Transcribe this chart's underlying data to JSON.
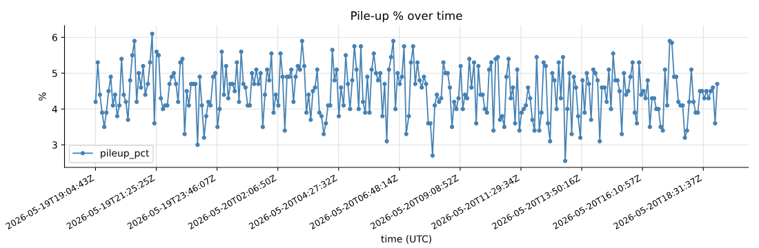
{
  "chart_data": {
    "type": "line",
    "title": "Pile-up % over time",
    "xlabel": "time (UTC)",
    "ylabel": "%",
    "x": [
      "2026-05-19T19:05",
      "2026-05-19T19:10",
      "2026-05-19T19:15",
      "2026-05-19T19:20",
      "2026-05-19T19:25",
      "2026-05-19T19:30",
      "2026-05-19T19:35",
      "2026-05-19T19:40",
      "2026-05-19T19:45",
      "2026-05-19T19:50",
      "2026-05-19T19:55",
      "2026-05-19T20:00",
      "2026-05-19T20:05",
      "2026-05-19T20:10",
      "2026-05-19T20:15",
      "2026-05-19T20:20",
      "2026-05-19T20:25",
      "2026-05-19T20:30",
      "2026-05-19T20:35",
      "2026-05-19T20:40",
      "2026-05-19T20:45",
      "2026-05-19T20:50",
      "2026-05-19T20:55",
      "2026-05-19T21:00",
      "2026-05-19T21:06",
      "2026-05-19T21:11",
      "2026-05-19T21:16",
      "2026-05-19T21:21",
      "2026-05-19T21:26",
      "2026-05-19T21:31",
      "2026-05-19T21:36",
      "2026-05-19T21:41",
      "2026-05-19T21:46",
      "2026-05-19T21:51",
      "2026-05-19T21:56",
      "2026-05-19T22:01",
      "2026-05-19T22:06",
      "2026-05-19T22:11",
      "2026-05-19T22:16",
      "2026-05-19T22:21",
      "2026-05-19T22:26",
      "2026-05-19T22:31",
      "2026-05-19T22:36",
      "2026-05-19T22:41",
      "2026-05-19T22:46",
      "2026-05-19T22:51",
      "2026-05-19T22:56",
      "2026-05-19T23:01",
      "2026-05-19T23:06",
      "2026-05-19T23:11",
      "2026-05-19T23:16",
      "2026-05-19T23:21",
      "2026-05-19T23:26",
      "2026-05-19T23:31",
      "2026-05-19T23:37",
      "2026-05-19T23:42",
      "2026-05-19T23:47",
      "2026-05-19T23:52",
      "2026-05-19T23:57",
      "2026-05-20T00:02",
      "2026-05-20T00:07",
      "2026-05-20T00:12",
      "2026-05-20T00:17",
      "2026-05-20T00:22",
      "2026-05-20T00:27",
      "2026-05-20T00:32",
      "2026-05-20T00:37",
      "2026-05-20T00:42",
      "2026-05-20T00:47",
      "2026-05-20T00:52",
      "2026-05-20T00:57",
      "2026-05-20T01:02",
      "2026-05-20T01:07",
      "2026-05-20T01:12",
      "2026-05-20T01:17",
      "2026-05-20T01:22",
      "2026-05-20T01:27",
      "2026-05-20T01:32",
      "2026-05-20T01:37",
      "2026-05-20T01:42",
      "2026-05-20T01:47",
      "2026-05-20T01:52",
      "2026-05-20T01:57",
      "2026-05-20T02:02",
      "2026-05-20T02:08",
      "2026-05-20T02:13",
      "2026-05-20T02:18",
      "2026-05-20T02:23",
      "2026-05-20T02:28",
      "2026-05-20T02:33",
      "2026-05-20T02:38",
      "2026-05-20T02:43",
      "2026-05-20T02:48",
      "2026-05-20T02:53",
      "2026-05-20T02:58",
      "2026-05-20T03:03",
      "2026-05-20T03:08",
      "2026-05-20T03:13",
      "2026-05-20T03:18",
      "2026-05-20T03:23",
      "2026-05-20T03:28",
      "2026-05-20T03:33",
      "2026-05-20T03:38",
      "2026-05-20T03:43",
      "2026-05-20T03:48",
      "2026-05-20T03:53",
      "2026-05-20T03:58",
      "2026-05-20T04:03",
      "2026-05-20T04:08",
      "2026-05-20T04:13",
      "2026-05-20T04:18",
      "2026-05-20T04:23",
      "2026-05-20T04:28",
      "2026-05-20T04:33",
      "2026-05-20T04:39",
      "2026-05-20T04:44",
      "2026-05-20T04:49",
      "2026-05-20T04:54",
      "2026-05-20T04:59",
      "2026-05-20T05:04",
      "2026-05-20T05:09",
      "2026-05-20T05:14",
      "2026-05-20T05:19",
      "2026-05-20T05:24",
      "2026-05-20T05:29",
      "2026-05-20T05:34",
      "2026-05-20T05:39",
      "2026-05-20T05:44",
      "2026-05-20T05:49",
      "2026-05-20T05:54",
      "2026-05-20T05:59",
      "2026-05-20T06:04",
      "2026-05-20T06:09",
      "2026-05-20T06:14",
      "2026-05-20T06:19",
      "2026-05-20T06:24",
      "2026-05-20T06:29",
      "2026-05-20T06:34",
      "2026-05-20T06:39",
      "2026-05-20T06:44",
      "2026-05-20T06:49",
      "2026-05-20T06:54",
      "2026-05-20T06:59",
      "2026-05-20T07:04",
      "2026-05-20T07:10",
      "2026-05-20T07:15",
      "2026-05-20T07:20",
      "2026-05-20T07:25",
      "2026-05-20T07:30",
      "2026-05-20T07:35",
      "2026-05-20T07:40",
      "2026-05-20T07:45",
      "2026-05-20T07:50",
      "2026-05-20T07:55",
      "2026-05-20T08:00",
      "2026-05-20T08:05",
      "2026-05-20T08:10",
      "2026-05-20T08:15",
      "2026-05-20T08:20",
      "2026-05-20T08:25",
      "2026-05-20T08:30",
      "2026-05-20T08:35",
      "2026-05-20T08:40",
      "2026-05-20T08:45",
      "2026-05-20T08:50",
      "2026-05-20T08:55",
      "2026-05-20T09:00",
      "2026-05-20T09:05",
      "2026-05-20T09:10",
      "2026-05-20T09:15",
      "2026-05-20T09:20",
      "2026-05-20T09:25",
      "2026-05-20T09:30",
      "2026-05-20T09:35",
      "2026-05-20T09:41",
      "2026-05-20T09:46",
      "2026-05-20T09:51",
      "2026-05-20T09:56",
      "2026-05-20T10:01",
      "2026-05-20T10:06",
      "2026-05-20T10:11",
      "2026-05-20T10:16",
      "2026-05-20T10:21",
      "2026-05-20T10:26",
      "2026-05-20T10:31",
      "2026-05-20T10:36",
      "2026-05-20T10:41",
      "2026-05-20T10:46",
      "2026-05-20T10:51",
      "2026-05-20T10:56",
      "2026-05-20T11:01",
      "2026-05-20T11:06",
      "2026-05-20T11:11",
      "2026-05-20T11:16",
      "2026-05-20T11:21",
      "2026-05-20T11:26",
      "2026-05-20T11:31",
      "2026-05-20T11:36",
      "2026-05-20T11:41",
      "2026-05-20T11:46",
      "2026-05-20T11:51",
      "2026-05-20T11:56",
      "2026-05-20T12:01",
      "2026-05-20T12:06",
      "2026-05-20T12:12",
      "2026-05-20T12:17",
      "2026-05-20T12:22",
      "2026-05-20T12:27",
      "2026-05-20T12:32",
      "2026-05-20T12:37",
      "2026-05-20T12:42",
      "2026-05-20T12:47",
      "2026-05-20T12:52",
      "2026-05-20T12:57",
      "2026-05-20T13:02",
      "2026-05-20T13:07",
      "2026-05-20T13:12",
      "2026-05-20T13:17",
      "2026-05-20T13:22",
      "2026-05-20T13:27",
      "2026-05-20T13:32",
      "2026-05-20T13:37",
      "2026-05-20T13:42",
      "2026-05-20T13:47",
      "2026-05-20T13:52",
      "2026-05-20T13:57",
      "2026-05-20T14:02",
      "2026-05-20T14:07",
      "2026-05-20T14:12",
      "2026-05-20T14:17",
      "2026-05-20T14:22",
      "2026-05-20T14:27",
      "2026-05-20T14:32",
      "2026-05-20T14:37",
      "2026-05-20T14:43",
      "2026-05-20T14:48",
      "2026-05-20T14:53",
      "2026-05-20T14:58",
      "2026-05-20T15:03",
      "2026-05-20T15:08",
      "2026-05-20T15:13",
      "2026-05-20T15:18",
      "2026-05-20T15:23",
      "2026-05-20T15:28",
      "2026-05-20T15:33",
      "2026-05-20T15:38",
      "2026-05-20T15:43",
      "2026-05-20T15:48",
      "2026-05-20T15:53",
      "2026-05-20T15:58",
      "2026-05-20T16:03",
      "2026-05-20T16:08",
      "2026-05-20T16:13",
      "2026-05-20T16:18",
      "2026-05-20T16:23",
      "2026-05-20T16:28",
      "2026-05-20T16:33",
      "2026-05-20T16:38",
      "2026-05-20T16:43",
      "2026-05-20T16:48",
      "2026-05-20T16:53",
      "2026-05-20T16:58",
      "2026-05-20T17:03",
      "2026-05-20T17:08",
      "2026-05-20T17:14",
      "2026-05-20T17:19",
      "2026-05-20T17:24",
      "2026-05-20T17:29",
      "2026-05-20T17:34",
      "2026-05-20T17:39",
      "2026-05-20T17:44",
      "2026-05-20T17:49",
      "2026-05-20T17:54",
      "2026-05-20T17:59",
      "2026-05-20T18:04",
      "2026-05-20T18:09",
      "2026-05-20T18:14",
      "2026-05-20T18:19",
      "2026-05-20T18:24",
      "2026-05-20T18:29",
      "2026-05-20T18:34",
      "2026-05-20T18:39",
      "2026-05-20T18:44",
      "2026-05-20T18:49",
      "2026-05-20T18:54",
      "2026-05-20T18:59",
      "2026-05-20T19:04"
    ],
    "series": [
      {
        "name": "pileup_pct",
        "color": "#4682b4",
        "values": [
          4.2,
          5.3,
          4.4,
          3.9,
          3.5,
          3.9,
          4.5,
          4.9,
          4.1,
          4.4,
          3.8,
          4.1,
          5.4,
          4.4,
          4.2,
          3.7,
          4.8,
          5.5,
          5.9,
          4.2,
          5.0,
          4.6,
          5.2,
          4.4,
          4.7,
          5.3,
          6.1,
          3.6,
          5.6,
          5.5,
          4.3,
          4.0,
          4.1,
          4.1,
          4.7,
          4.9,
          5.0,
          4.7,
          4.2,
          5.3,
          5.4,
          3.3,
          4.5,
          4.1,
          4.7,
          4.7,
          4.7,
          3.0,
          4.9,
          4.1,
          3.2,
          3.8,
          4.2,
          4.1,
          4.9,
          5.0,
          3.5,
          4.0,
          5.6,
          4.4,
          5.2,
          4.3,
          4.7,
          4.7,
          4.5,
          5.3,
          4.2,
          5.6,
          4.7,
          4.6,
          4.1,
          4.1,
          5.0,
          4.7,
          5.1,
          4.7,
          5.0,
          3.5,
          4.4,
          5.1,
          4.8,
          5.55,
          3.9,
          4.4,
          4.1,
          5.55,
          4.9,
          3.4,
          4.9,
          4.9,
          5.1,
          4.2,
          4.9,
          5.2,
          5.1,
          5.9,
          5.2,
          3.9,
          4.4,
          3.7,
          4.5,
          4.6,
          5.1,
          3.9,
          3.8,
          3.3,
          3.6,
          4.1,
          4.1,
          5.65,
          4.8,
          5.1,
          3.8,
          4.6,
          4.1,
          5.5,
          4.7,
          4.0,
          4.8,
          5.75,
          5.1,
          4.0,
          5.75,
          4.2,
          3.9,
          4.9,
          3.9,
          5.1,
          5.55,
          5.0,
          4.8,
          5.0,
          3.8,
          4.7,
          3.1,
          5.1,
          5.45,
          5.9,
          4.0,
          5.0,
          4.7,
          4.9,
          5.75,
          3.3,
          3.8,
          5.3,
          5.75,
          4.7,
          5.3,
          4.8,
          4.6,
          4.9,
          4.7,
          3.6,
          3.6,
          2.7,
          4.1,
          4.4,
          4.2,
          4.3,
          5.3,
          5.0,
          5.0,
          4.6,
          3.5,
          4.2,
          4.0,
          4.3,
          5.2,
          4.0,
          4.4,
          4.3,
          5.4,
          4.6,
          5.3,
          3.6,
          5.2,
          4.4,
          4.4,
          4.0,
          3.9,
          5.1,
          5.3,
          3.4,
          5.4,
          5.45,
          3.7,
          3.8,
          3.5,
          4.9,
          5.4,
          4.3,
          4.6,
          3.6,
          5.1,
          3.4,
          3.9,
          4.0,
          4.1,
          4.6,
          4.3,
          3.7,
          3.4,
          5.45,
          3.4,
          3.9,
          5.3,
          5.2,
          3.6,
          3.1,
          5.0,
          4.8,
          4.0,
          5.3,
          4.3,
          5.45,
          2.55,
          4.0,
          5.0,
          3.3,
          4.9,
          4.6,
          3.8,
          3.2,
          4.8,
          3.9,
          5.0,
          4.7,
          3.7,
          5.1,
          5.0,
          4.8,
          3.1,
          4.6,
          4.6,
          4.2,
          5.1,
          4.0,
          5.55,
          4.8,
          4.8,
          4.5,
          3.3,
          5.0,
          4.4,
          4.5,
          4.9,
          5.3,
          3.9,
          3.6,
          5.3,
          4.4,
          4.5,
          4.3,
          4.8,
          3.5,
          4.3,
          4.3,
          4.0,
          4.0,
          3.5,
          3.4,
          5.1,
          4.1,
          5.9,
          5.85,
          4.9,
          4.9,
          4.2,
          4.1,
          4.1,
          3.2,
          3.4,
          4.2,
          5.1,
          4.2,
          3.9,
          3.9,
          4.5,
          4.5,
          4.3,
          4.5,
          4.3,
          4.5,
          4.6,
          3.6,
          4.7
        ]
      }
    ],
    "xlim": [
      "2026-05-19T17:53",
      "2026-05-20T20:16"
    ],
    "xticks": [
      {
        "value": "2026-05-19T19:04:43",
        "label": "2026-05-19T19:04:43Z"
      },
      {
        "value": "2026-05-19T21:25:25",
        "label": "2026-05-19T21:25:25Z"
      },
      {
        "value": "2026-05-19T23:46:07",
        "label": "2026-05-19T23:46:07Z"
      },
      {
        "value": "2026-05-20T02:06:50",
        "label": "2026-05-20T02:06:50Z"
      },
      {
        "value": "2026-05-20T04:27:32",
        "label": "2026-05-20T04:27:32Z"
      },
      {
        "value": "2026-05-20T06:48:14",
        "label": "2026-05-20T06:48:14Z"
      },
      {
        "value": "2026-05-20T09:08:52",
        "label": "2026-05-20T09:08:52Z"
      },
      {
        "value": "2026-05-20T11:29:34",
        "label": "2026-05-20T11:29:34Z"
      },
      {
        "value": "2026-05-20T13:50:16",
        "label": "2026-05-20T13:50:16Z"
      },
      {
        "value": "2026-05-20T16:10:57",
        "label": "2026-05-20T16:10:57Z"
      },
      {
        "value": "2026-05-20T18:31:37",
        "label": "2026-05-20T18:31:37Z"
      }
    ],
    "ylim": [
      2.37,
      6.33
    ],
    "yticks": [
      3,
      4,
      5,
      6
    ],
    "grid": true,
    "legend": "bottom left",
    "marker": "circle",
    "line_style": "solid"
  }
}
